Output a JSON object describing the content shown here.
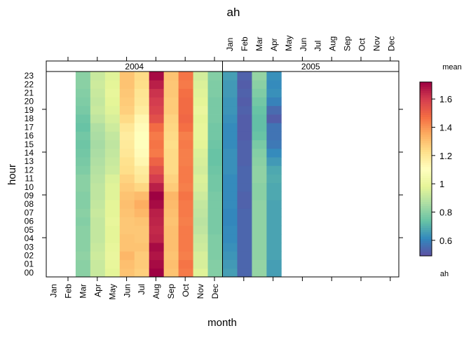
{
  "chart_data": {
    "type": "heatmap",
    "title": "ah",
    "xlabel": "month",
    "ylabel": "hour",
    "months": [
      "Jan",
      "Feb",
      "Mar",
      "Apr",
      "May",
      "Jun",
      "Jul",
      "Aug",
      "Sep",
      "Oct",
      "Nov",
      "Dec"
    ],
    "hours": [
      "00",
      "01",
      "02",
      "03",
      "04",
      "05",
      "06",
      "07",
      "08",
      "09",
      "10",
      "11",
      "12",
      "13",
      "14",
      "15",
      "16",
      "17",
      "18",
      "19",
      "20",
      "21",
      "22",
      "23"
    ],
    "legend": {
      "title": "mean",
      "subtitle": "ah",
      "range": [
        0.49,
        1.72
      ],
      "ticks": [
        0.6,
        0.8,
        1,
        1.2,
        1.4,
        1.6
      ],
      "tick_labels": [
        "0.6",
        "0.8",
        "1",
        "1.2",
        "1.4",
        "1.6"
      ],
      "palette": [
        "#5e4fa2",
        "#3288bd",
        "#66c2a5",
        "#abdda4",
        "#e6f598",
        "#ffffbf",
        "#fee08b",
        "#fdae61",
        "#f46d43",
        "#d53e4f",
        "#9e0142"
      ]
    },
    "panels": [
      {
        "label": "2004",
        "values": {
          "Mar": [
            0.8,
            0.8,
            0.81,
            0.8,
            0.8,
            0.8,
            0.79,
            0.8,
            0.79,
            0.79,
            0.8,
            0.8,
            0.78,
            0.77,
            0.76,
            0.75,
            0.76,
            0.74,
            0.75,
            0.77,
            0.78,
            0.79,
            0.8,
            0.8
          ],
          "Apr": [
            0.92,
            0.92,
            0.93,
            0.92,
            0.91,
            0.91,
            0.91,
            0.92,
            0.91,
            0.9,
            0.9,
            0.89,
            0.88,
            0.87,
            0.86,
            0.85,
            0.86,
            0.87,
            0.9,
            0.92,
            0.91,
            0.92,
            0.93,
            0.92
          ],
          "May": [
            0.98,
            0.99,
            1.0,
            0.99,
            0.98,
            0.98,
            0.99,
            0.98,
            0.98,
            0.97,
            0.97,
            0.96,
            0.93,
            0.92,
            0.91,
            0.9,
            0.91,
            0.93,
            0.95,
            0.97,
            0.98,
            0.99,
            0.98,
            0.97
          ],
          "Jun": [
            1.3,
            1.31,
            1.33,
            1.3,
            1.3,
            1.29,
            1.29,
            1.3,
            1.31,
            1.3,
            1.28,
            1.26,
            1.23,
            1.22,
            1.2,
            1.19,
            1.18,
            1.2,
            1.24,
            1.27,
            1.28,
            1.29,
            1.3,
            1.3
          ],
          "Jul": [
            1.27,
            1.28,
            1.28,
            1.3,
            1.29,
            1.29,
            1.3,
            1.33,
            1.35,
            1.32,
            1.25,
            1.2,
            1.18,
            1.14,
            1.12,
            1.1,
            1.1,
            1.12,
            1.14,
            1.18,
            1.2,
            1.21,
            1.23,
            1.24
          ],
          "Aug": [
            1.72,
            1.7,
            1.68,
            1.7,
            1.65,
            1.64,
            1.65,
            1.66,
            1.7,
            1.72,
            1.66,
            1.6,
            1.55,
            1.5,
            1.45,
            1.46,
            1.45,
            1.48,
            1.55,
            1.58,
            1.6,
            1.62,
            1.66,
            1.7
          ],
          "Sep": [
            1.3,
            1.31,
            1.3,
            1.31,
            1.31,
            1.31,
            1.3,
            1.31,
            1.32,
            1.33,
            1.28,
            1.26,
            1.24,
            1.24,
            1.24,
            1.23,
            1.24,
            1.25,
            1.26,
            1.28,
            1.28,
            1.29,
            1.29,
            1.3
          ],
          "Oct": [
            1.45,
            1.46,
            1.44,
            1.45,
            1.45,
            1.45,
            1.44,
            1.45,
            1.45,
            1.46,
            1.44,
            1.45,
            1.45,
            1.44,
            1.44,
            1.45,
            1.44,
            1.47,
            1.49,
            1.48,
            1.48,
            1.47,
            1.45,
            1.46
          ],
          "Nov": [
            0.97,
            0.95,
            0.95,
            0.93,
            0.92,
            0.9,
            0.89,
            0.9,
            0.91,
            0.93,
            0.95,
            0.96,
            0.94,
            0.95,
            0.96,
            0.98,
            0.99,
            0.99,
            0.98,
            1.0,
            0.98,
            0.97,
            0.96,
            0.94
          ],
          "Dec": [
            0.79,
            0.79,
            0.78,
            0.78,
            0.78,
            0.77,
            0.77,
            0.77,
            0.77,
            0.77,
            0.76,
            0.76,
            0.75,
            0.74,
            0.74,
            0.75,
            0.76,
            0.76,
            0.77,
            0.77,
            0.77,
            0.78,
            0.78,
            0.79
          ]
        }
      },
      {
        "label": "2005",
        "values": {
          "Jan": [
            0.66,
            0.65,
            0.64,
            0.63,
            0.62,
            0.62,
            0.61,
            0.61,
            0.62,
            0.62,
            0.62,
            0.62,
            0.63,
            0.63,
            0.63,
            0.62,
            0.62,
            0.62,
            0.63,
            0.64,
            0.64,
            0.65,
            0.65,
            0.66
          ],
          "Feb": [
            0.54,
            0.54,
            0.54,
            0.54,
            0.54,
            0.54,
            0.54,
            0.54,
            0.53,
            0.53,
            0.54,
            0.54,
            0.54,
            0.53,
            0.53,
            0.53,
            0.52,
            0.52,
            0.52,
            0.53,
            0.52,
            0.53,
            0.52,
            0.53
          ],
          "Mar": [
            0.82,
            0.82,
            0.81,
            0.81,
            0.81,
            0.81,
            0.81,
            0.81,
            0.81,
            0.8,
            0.8,
            0.81,
            0.81,
            0.8,
            0.79,
            0.77,
            0.74,
            0.73,
            0.73,
            0.74,
            0.76,
            0.78,
            0.8,
            0.82
          ],
          "Apr": [
            0.66,
            0.66,
            0.67,
            0.67,
            0.67,
            0.67,
            0.67,
            0.67,
            0.67,
            0.68,
            0.68,
            0.69,
            0.68,
            0.65,
            0.62,
            0.58,
            0.57,
            0.57,
            0.52,
            0.55,
            0.6,
            0.63,
            0.62,
            0.63
          ]
        }
      }
    ]
  }
}
